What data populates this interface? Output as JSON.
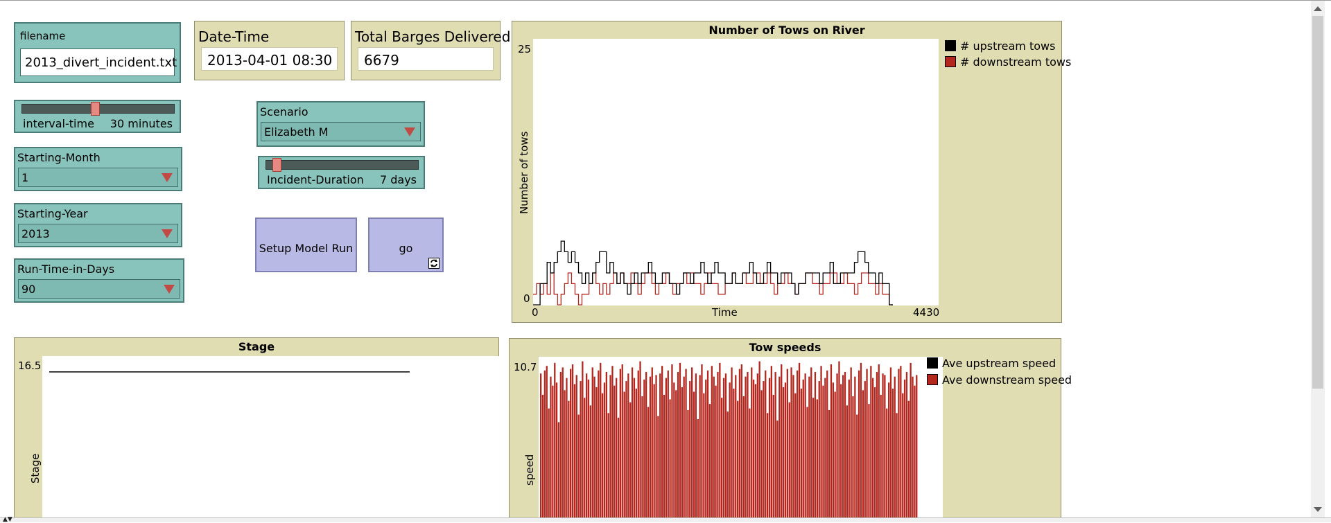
{
  "inputs": {
    "filename": {
      "label": "filename",
      "value": "2013_divert_incident.txt"
    }
  },
  "monitors": {
    "datetime": {
      "label": "Date-Time",
      "value": "2013-04-01 08:30"
    },
    "barges": {
      "label": "Total Barges Delivered",
      "value": "6679"
    }
  },
  "sliders": {
    "interval": {
      "label": "interval-time",
      "value_text": "30 minutes",
      "position": 0.48
    },
    "incident": {
      "label": "Incident-Duration",
      "value_text": "7 days",
      "position": 0.05
    }
  },
  "choosers": {
    "month": {
      "label": "Starting-Month",
      "value": "1"
    },
    "year": {
      "label": "Starting-Year",
      "value": "2013"
    },
    "runtime": {
      "label": "Run-Time-in-Days",
      "value": "90"
    },
    "scenario": {
      "label": "Scenario",
      "value": "Elizabeth M"
    }
  },
  "buttons": {
    "setup": {
      "label": "Setup Model Run"
    },
    "go": {
      "label": "go",
      "forever": true
    }
  },
  "colors": {
    "upstream": "#000000",
    "downstream": "#b4271f"
  },
  "chart_data": [
    {
      "type": "line",
      "title": "Number of Tows on River",
      "xlabel": "Time",
      "ylabel": "Number of tows",
      "xlim": [
        0,
        4430
      ],
      "ylim": [
        0,
        25
      ],
      "x_ticks": [
        "0",
        "4430"
      ],
      "y_ticks": [
        "0",
        "25"
      ],
      "x_data_end": 3930,
      "legend": "top-right",
      "series": [
        {
          "name": "# upstream tows",
          "color": "#000000",
          "values": [
            0,
            0,
            2,
            2,
            4,
            3,
            4,
            5,
            6,
            5,
            4,
            5,
            4,
            3,
            2,
            3,
            2,
            3,
            4,
            5,
            5,
            3,
            4,
            3,
            2,
            3,
            2,
            1,
            2,
            3,
            2,
            3,
            3,
            4,
            3,
            2,
            2,
            3,
            3,
            2,
            2,
            1,
            2,
            3,
            3,
            2,
            3,
            3,
            4,
            3,
            2,
            3,
            4,
            3,
            3,
            2,
            2,
            3,
            2,
            2,
            3,
            3,
            4,
            3,
            2,
            2,
            3,
            4,
            3,
            3,
            2,
            3,
            3,
            3,
            2,
            1,
            2,
            2,
            3,
            3,
            3,
            3,
            2,
            3,
            3,
            4,
            2,
            2,
            3,
            3,
            3,
            3,
            4,
            5,
            5,
            4,
            3,
            3,
            2,
            3,
            2,
            2,
            0
          ]
        },
        {
          "name": "# downstream tows",
          "color": "#b4271f",
          "values": [
            1,
            2,
            1,
            2,
            1,
            3,
            1,
            0,
            1,
            2,
            3,
            2,
            1,
            0,
            1,
            1,
            2,
            3,
            2,
            1,
            2,
            1,
            2,
            3,
            2,
            3,
            2,
            2,
            3,
            2,
            1,
            2,
            3,
            3,
            2,
            1,
            2,
            2,
            3,
            2,
            1,
            2,
            2,
            3,
            2,
            3,
            2,
            2,
            1,
            2,
            3,
            2,
            2,
            1,
            1,
            2,
            2,
            3,
            2,
            2,
            3,
            2,
            2,
            3,
            3,
            2,
            2,
            3,
            2,
            1,
            2,
            2,
            3,
            2,
            2,
            1,
            2,
            2,
            3,
            3,
            2,
            2,
            1,
            2,
            2,
            3,
            3,
            2,
            2,
            3,
            2,
            2,
            1,
            2,
            3,
            3,
            2,
            2,
            1,
            2,
            1,
            1,
            0
          ]
        }
      ]
    },
    {
      "type": "line",
      "title": "Stage",
      "ylabel": "Stage",
      "y_ticks": [
        "16.5"
      ],
      "ylim": [
        0,
        16.5
      ],
      "series": [
        {
          "color": "#000000",
          "values": [
            16.3,
            16.3
          ]
        }
      ]
    },
    {
      "type": "bar",
      "title": "Tow speeds",
      "ylabel": "speed",
      "y_ticks": [
        "10.7"
      ],
      "ylim": [
        0,
        10.7
      ],
      "legend": "top-right",
      "series": [
        {
          "name": "Ave upstream speed",
          "color": "#000000",
          "values": []
        },
        {
          "name": "Ave downstream speed",
          "color": "#b4271f",
          "values": [
            9.6,
            8.2,
            9.8,
            10.1,
            7.3,
            9.4,
            8.8,
            10.3,
            9.0,
            6.4,
            9.7,
            10.0,
            8.5,
            9.3,
            7.8,
            9.9,
            10.2,
            8.9,
            9.5,
            6.9,
            9.1,
            10.4,
            8.0,
            9.6,
            9.2,
            7.5,
            10.0,
            9.4,
            8.7,
            9.8,
            10.3,
            8.3,
            9.0,
            9.7,
            7.0,
            9.5,
            10.1,
            8.8,
            9.3,
            6.7,
            9.9,
            10.2,
            8.4,
            9.1,
            9.6,
            7.7,
            10.0,
            9.3,
            8.6,
            9.8,
            10.4,
            8.1,
            9.2,
            9.7,
            7.4,
            9.4,
            10.0,
            8.9,
            9.5,
            6.8,
            9.6,
            10.1,
            8.2,
            9.3,
            9.8,
            7.9,
            10.2,
            9.0,
            8.5,
            9.7,
            10.3,
            8.7,
            9.4,
            9.9,
            7.2,
            9.1,
            10.0,
            8.4,
            9.6,
            6.6,
            9.5,
            10.2,
            8.3,
            9.2,
            9.8,
            7.6,
            10.1,
            9.4,
            8.8,
            9.7,
            10.3,
            8.0,
            9.3,
            9.6,
            7.1,
            9.0,
            10.0,
            8.6,
            9.5,
            7.8,
            9.9,
            10.2,
            8.1,
            9.4,
            9.7,
            7.3,
            10.0,
            9.2,
            8.9,
            9.6,
            10.4,
            8.5,
            9.1,
            9.8,
            7.0,
            9.3,
            10.1,
            8.2,
            9.7,
            6.5,
            9.4,
            10.2,
            8.7,
            9.0,
            9.9,
            7.7,
            10.0,
            9.5,
            8.3,
            9.8,
            10.3,
            8.6,
            9.2,
            9.6,
            7.4,
            9.4,
            10.0,
            8.0,
            9.7,
            7.9,
            9.1,
            10.1,
            8.8,
            9.3,
            9.8,
            7.2,
            10.2,
            9.0,
            8.4,
            9.6,
            10.4,
            8.9,
            9.5,
            9.7,
            7.5,
            9.2,
            10.0,
            8.1,
            9.4,
            6.9,
            9.8,
            10.3,
            8.5,
            9.1,
            9.9,
            7.6,
            10.1,
            9.3,
            8.7,
            9.7,
            10.2,
            8.2,
            9.6,
            9.5,
            7.3,
            9.0,
            10.0,
            8.6,
            9.4,
            7.0,
            9.9,
            10.1,
            8.3,
            9.2,
            9.7,
            7.8,
            10.3,
            9.4,
            8.8,
            9.5
          ]
        }
      ]
    }
  ]
}
